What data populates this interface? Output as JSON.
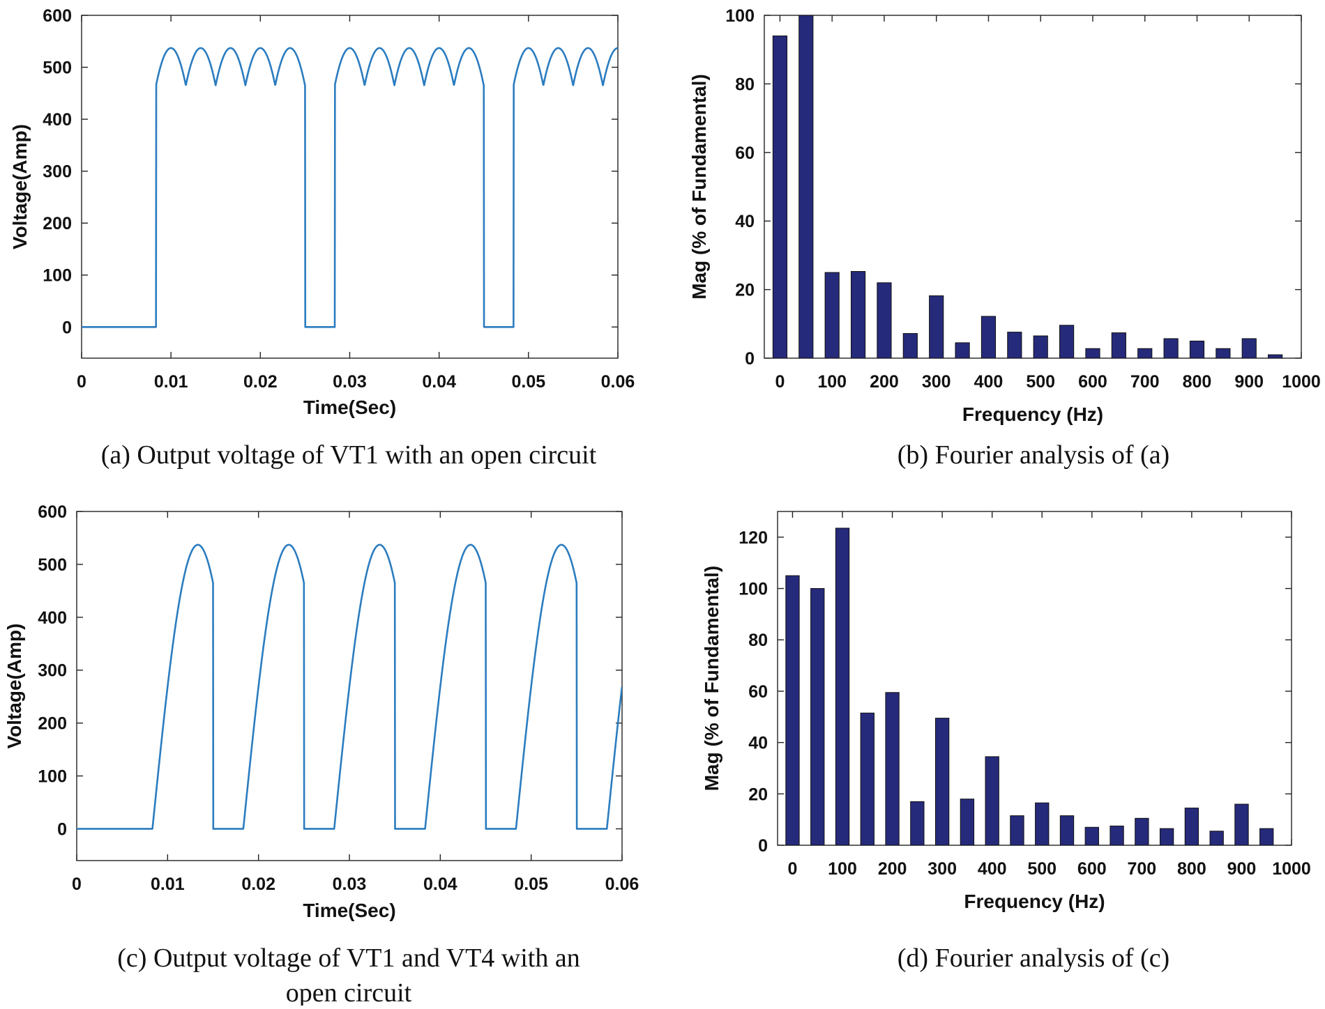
{
  "charts": [
    {
      "id": "a",
      "type": "line",
      "caption_lines": [
        "(a) Output voltage of VT1 with an open circuit"
      ],
      "xlabel": "Time(Sec)",
      "ylabel": "Voltage(Amp)",
      "xlim": [
        0,
        0.06
      ],
      "ylim": [
        -60,
        600
      ],
      "xticks": [
        0,
        0.01,
        0.02,
        0.03,
        0.04,
        0.05,
        0.06
      ],
      "xtick_labels": [
        "0",
        "0.01",
        "0.02",
        "0.03",
        "0.04",
        "0.05",
        "0.06"
      ],
      "yticks": [
        0,
        100,
        200,
        300,
        400,
        500,
        600
      ],
      "ytick_labels": [
        "0",
        "100",
        "200",
        "300",
        "400",
        "500",
        "600"
      ],
      "series": [
        {
          "name": "Output voltage",
          "color": "#2b7cbf",
          "peak": 537,
          "ripple_period": 0.003333,
          "on_intervals": [
            [
              0.00833,
              0.025
            ],
            [
              0.02833,
              0.045
            ],
            [
              0.04833,
              0.065
            ]
          ],
          "off_value": 0
        }
      ]
    },
    {
      "id": "b",
      "type": "bar",
      "caption_lines": [
        "(b) Fourier analysis of (a)"
      ],
      "xlabel": "Frequency (Hz)",
      "ylabel": "Mag (% of Fundamental)",
      "xlim": [
        -30,
        1000
      ],
      "ylim": [
        0,
        100
      ],
      "xticks": [
        0,
        100,
        200,
        300,
        400,
        500,
        600,
        700,
        800,
        900,
        1000
      ],
      "xtick_labels": [
        "0",
        "100",
        "200",
        "300",
        "400",
        "500",
        "600",
        "700",
        "800",
        "900",
        "1000"
      ],
      "yticks": [
        0,
        20,
        40,
        60,
        80,
        100
      ],
      "ytick_labels": [
        "0",
        "20",
        "40",
        "60",
        "80",
        "100"
      ],
      "bar_width": 27,
      "categories": [
        0,
        50,
        100,
        150,
        200,
        250,
        300,
        350,
        400,
        450,
        500,
        550,
        600,
        650,
        700,
        750,
        800,
        850,
        900,
        950
      ],
      "values": [
        94,
        100,
        25,
        25.3,
        22,
        7.2,
        18.2,
        4.5,
        12.2,
        7.6,
        6.5,
        9.6,
        2.8,
        7.4,
        2.8,
        5.7,
        5,
        2.8,
        5.7,
        1
      ]
    },
    {
      "id": "c",
      "type": "line",
      "caption_lines": [
        "(c) Output voltage of VT1 and VT4 with an",
        "open circuit"
      ],
      "xlabel": "Time(Sec)",
      "ylabel": "Voltage(Amp)",
      "xlim": [
        0,
        0.06
      ],
      "ylim": [
        -60,
        600
      ],
      "xticks": [
        0,
        0.01,
        0.02,
        0.03,
        0.04,
        0.05,
        0.06
      ],
      "xtick_labels": [
        "0",
        "0.01",
        "0.02",
        "0.03",
        "0.04",
        "0.05",
        "0.06"
      ],
      "yticks": [
        0,
        100,
        200,
        300,
        400,
        500,
        600
      ],
      "ytick_labels": [
        "0",
        "100",
        "200",
        "300",
        "400",
        "500",
        "600"
      ],
      "series": [
        {
          "name": "Output voltage",
          "color": "#2b7cbf",
          "peak": 537,
          "ripple_period": 0.01,
          "on_intervals": [
            [
              0.00833,
              0.015
            ],
            [
              0.01833,
              0.025
            ],
            [
              0.02833,
              0.035
            ],
            [
              0.03833,
              0.045
            ],
            [
              0.04833,
              0.055
            ],
            [
              0.05833,
              0.065
            ]
          ],
          "off_value": 0
        }
      ]
    },
    {
      "id": "d",
      "type": "bar",
      "caption_lines": [
        "(d) Fourier analysis of (c)"
      ],
      "xlabel": "Frequency (Hz)",
      "ylabel": "Mag (% of Fundamental)",
      "xlim": [
        -30,
        1000
      ],
      "ylim": [
        0,
        130
      ],
      "xticks": [
        0,
        100,
        200,
        300,
        400,
        500,
        600,
        700,
        800,
        900,
        1000
      ],
      "xtick_labels": [
        "0",
        "100",
        "200",
        "300",
        "400",
        "500",
        "600",
        "700",
        "800",
        "900",
        "1000"
      ],
      "yticks": [
        0,
        20,
        40,
        60,
        80,
        100,
        120
      ],
      "ytick_labels": [
        "0",
        "20",
        "40",
        "60",
        "80",
        "100",
        "120"
      ],
      "bar_width": 27,
      "categories": [
        0,
        50,
        100,
        150,
        200,
        250,
        300,
        350,
        400,
        450,
        500,
        550,
        600,
        650,
        700,
        750,
        800,
        850,
        900,
        950
      ],
      "values": [
        105,
        100,
        123.5,
        51.5,
        59.5,
        17,
        49.5,
        18,
        34.5,
        11.5,
        16.5,
        11.5,
        7,
        7.5,
        10.5,
        6.5,
        14.5,
        5.5,
        16,
        6.5
      ]
    }
  ]
}
